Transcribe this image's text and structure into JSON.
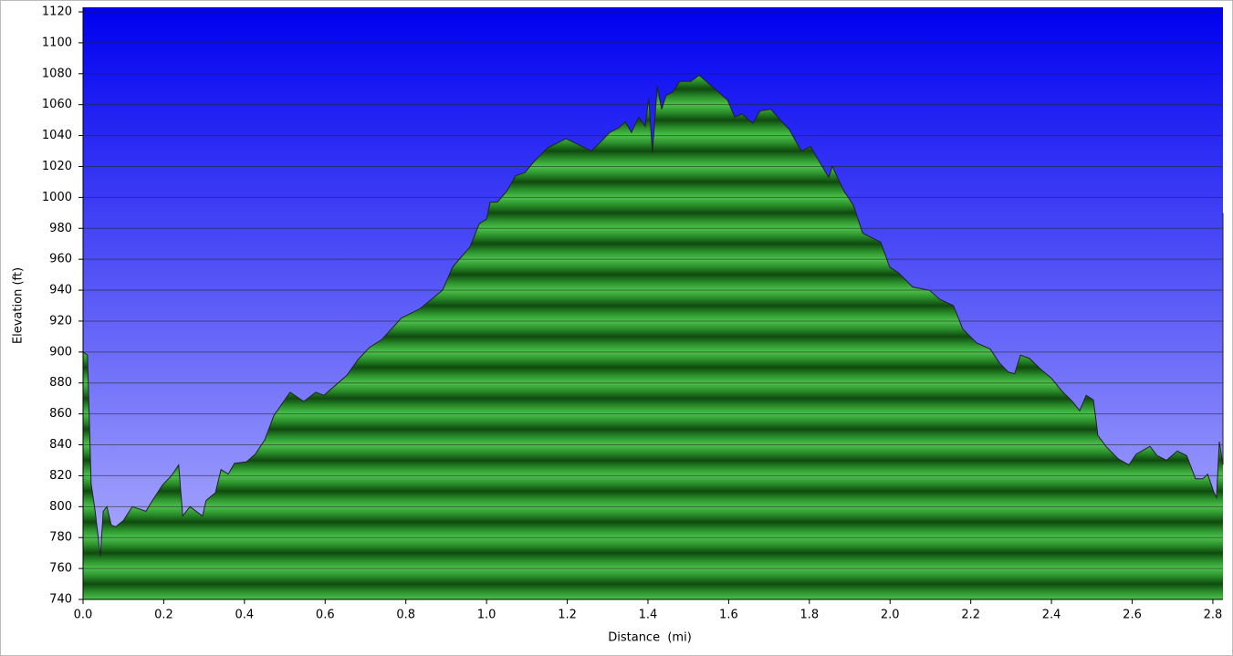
{
  "chart_data": {
    "type": "area",
    "x_label": "Distance  (mi)",
    "y_label": "Elevation (ft)",
    "x": [
      0,
      0.011,
      0.02,
      0.03,
      0.043,
      0.05,
      0.059,
      0.07,
      0.081,
      0.1,
      0.122,
      0.156,
      0.172,
      0.197,
      0.219,
      0.237,
      0.247,
      0.265,
      0.296,
      0.305,
      0.328,
      0.342,
      0.36,
      0.375,
      0.405,
      0.427,
      0.45,
      0.473,
      0.513,
      0.547,
      0.577,
      0.597,
      0.654,
      0.681,
      0.71,
      0.74,
      0.789,
      0.835,
      0.891,
      0.916,
      0.959,
      0.982,
      1.0,
      1.009,
      1.027,
      1.05,
      1.072,
      1.095,
      1.117,
      1.151,
      1.197,
      1.26,
      1.287,
      1.305,
      1.328,
      1.344,
      1.359,
      1.377,
      1.393,
      1.402,
      1.411,
      1.423,
      1.434,
      1.445,
      1.461,
      1.479,
      1.506,
      1.527,
      1.558,
      1.597,
      1.615,
      1.633,
      1.66,
      1.678,
      1.705,
      1.728,
      1.75,
      1.78,
      1.803,
      1.818,
      1.848,
      1.857,
      1.886,
      1.909,
      1.932,
      1.954,
      1.977,
      1.999,
      2.022,
      2.056,
      2.097,
      2.124,
      2.157,
      2.18,
      2.214,
      2.248,
      2.271,
      2.293,
      2.309,
      2.323,
      2.345,
      2.373,
      2.4,
      2.425,
      2.452,
      2.47,
      2.486,
      2.504,
      2.515,
      2.535,
      2.565,
      2.592,
      2.61,
      2.644,
      2.662,
      2.685,
      2.712,
      2.735,
      2.757,
      2.775,
      2.787,
      2.803,
      2.809,
      2.816,
      2.825,
      2.825
    ],
    "values": [
      900,
      898,
      815,
      797,
      768,
      797,
      800,
      788,
      787,
      791,
      800,
      797,
      804,
      814,
      820,
      827,
      794,
      800,
      794,
      804,
      809,
      824,
      821,
      828,
      829,
      834,
      843,
      859,
      874,
      868,
      874,
      872,
      885,
      895,
      903,
      908,
      922,
      928,
      940,
      955,
      968,
      983,
      986,
      997,
      997,
      1004,
      1014,
      1016,
      1023,
      1032,
      1038,
      1030,
      1037,
      1042,
      1045,
      1049,
      1042,
      1052,
      1046,
      1064,
      1029,
      1072,
      1057,
      1066,
      1068,
      1075,
      1075,
      1079,
      1072,
      1063,
      1052,
      1054,
      1048,
      1056,
      1057,
      1050,
      1044,
      1030,
      1033,
      1026,
      1013,
      1020,
      1004,
      995,
      977,
      974,
      971,
      955,
      951,
      942,
      940,
      934,
      930,
      915,
      906,
      902,
      893,
      887,
      886,
      898,
      896,
      889,
      883,
      875,
      868,
      862,
      872,
      869,
      846,
      839,
      831,
      827,
      834,
      839,
      833,
      830,
      836,
      833,
      818,
      818,
      821,
      809,
      806,
      842,
      827,
      990
    ],
    "color": "#2ea42e",
    "xlim": [
      0,
      2.825
    ],
    "ylim": [
      740,
      1120
    ],
    "xticks": [
      {
        "value": 0,
        "label": "0.0"
      },
      0.2,
      0.4,
      0.6,
      0.8,
      {
        "value": 1,
        "label": "1.0"
      },
      1.2,
      1.4,
      1.6,
      1.8,
      {
        "value": 2,
        "label": "2.0"
      },
      2.2,
      2.4,
      2.6,
      2.8
    ],
    "yticks": [
      740,
      760,
      780,
      800,
      820,
      840,
      860,
      880,
      900,
      920,
      940,
      960,
      980,
      1000,
      1020,
      1040,
      1060,
      1080,
      1100,
      1120
    ],
    "grid": true
  }
}
